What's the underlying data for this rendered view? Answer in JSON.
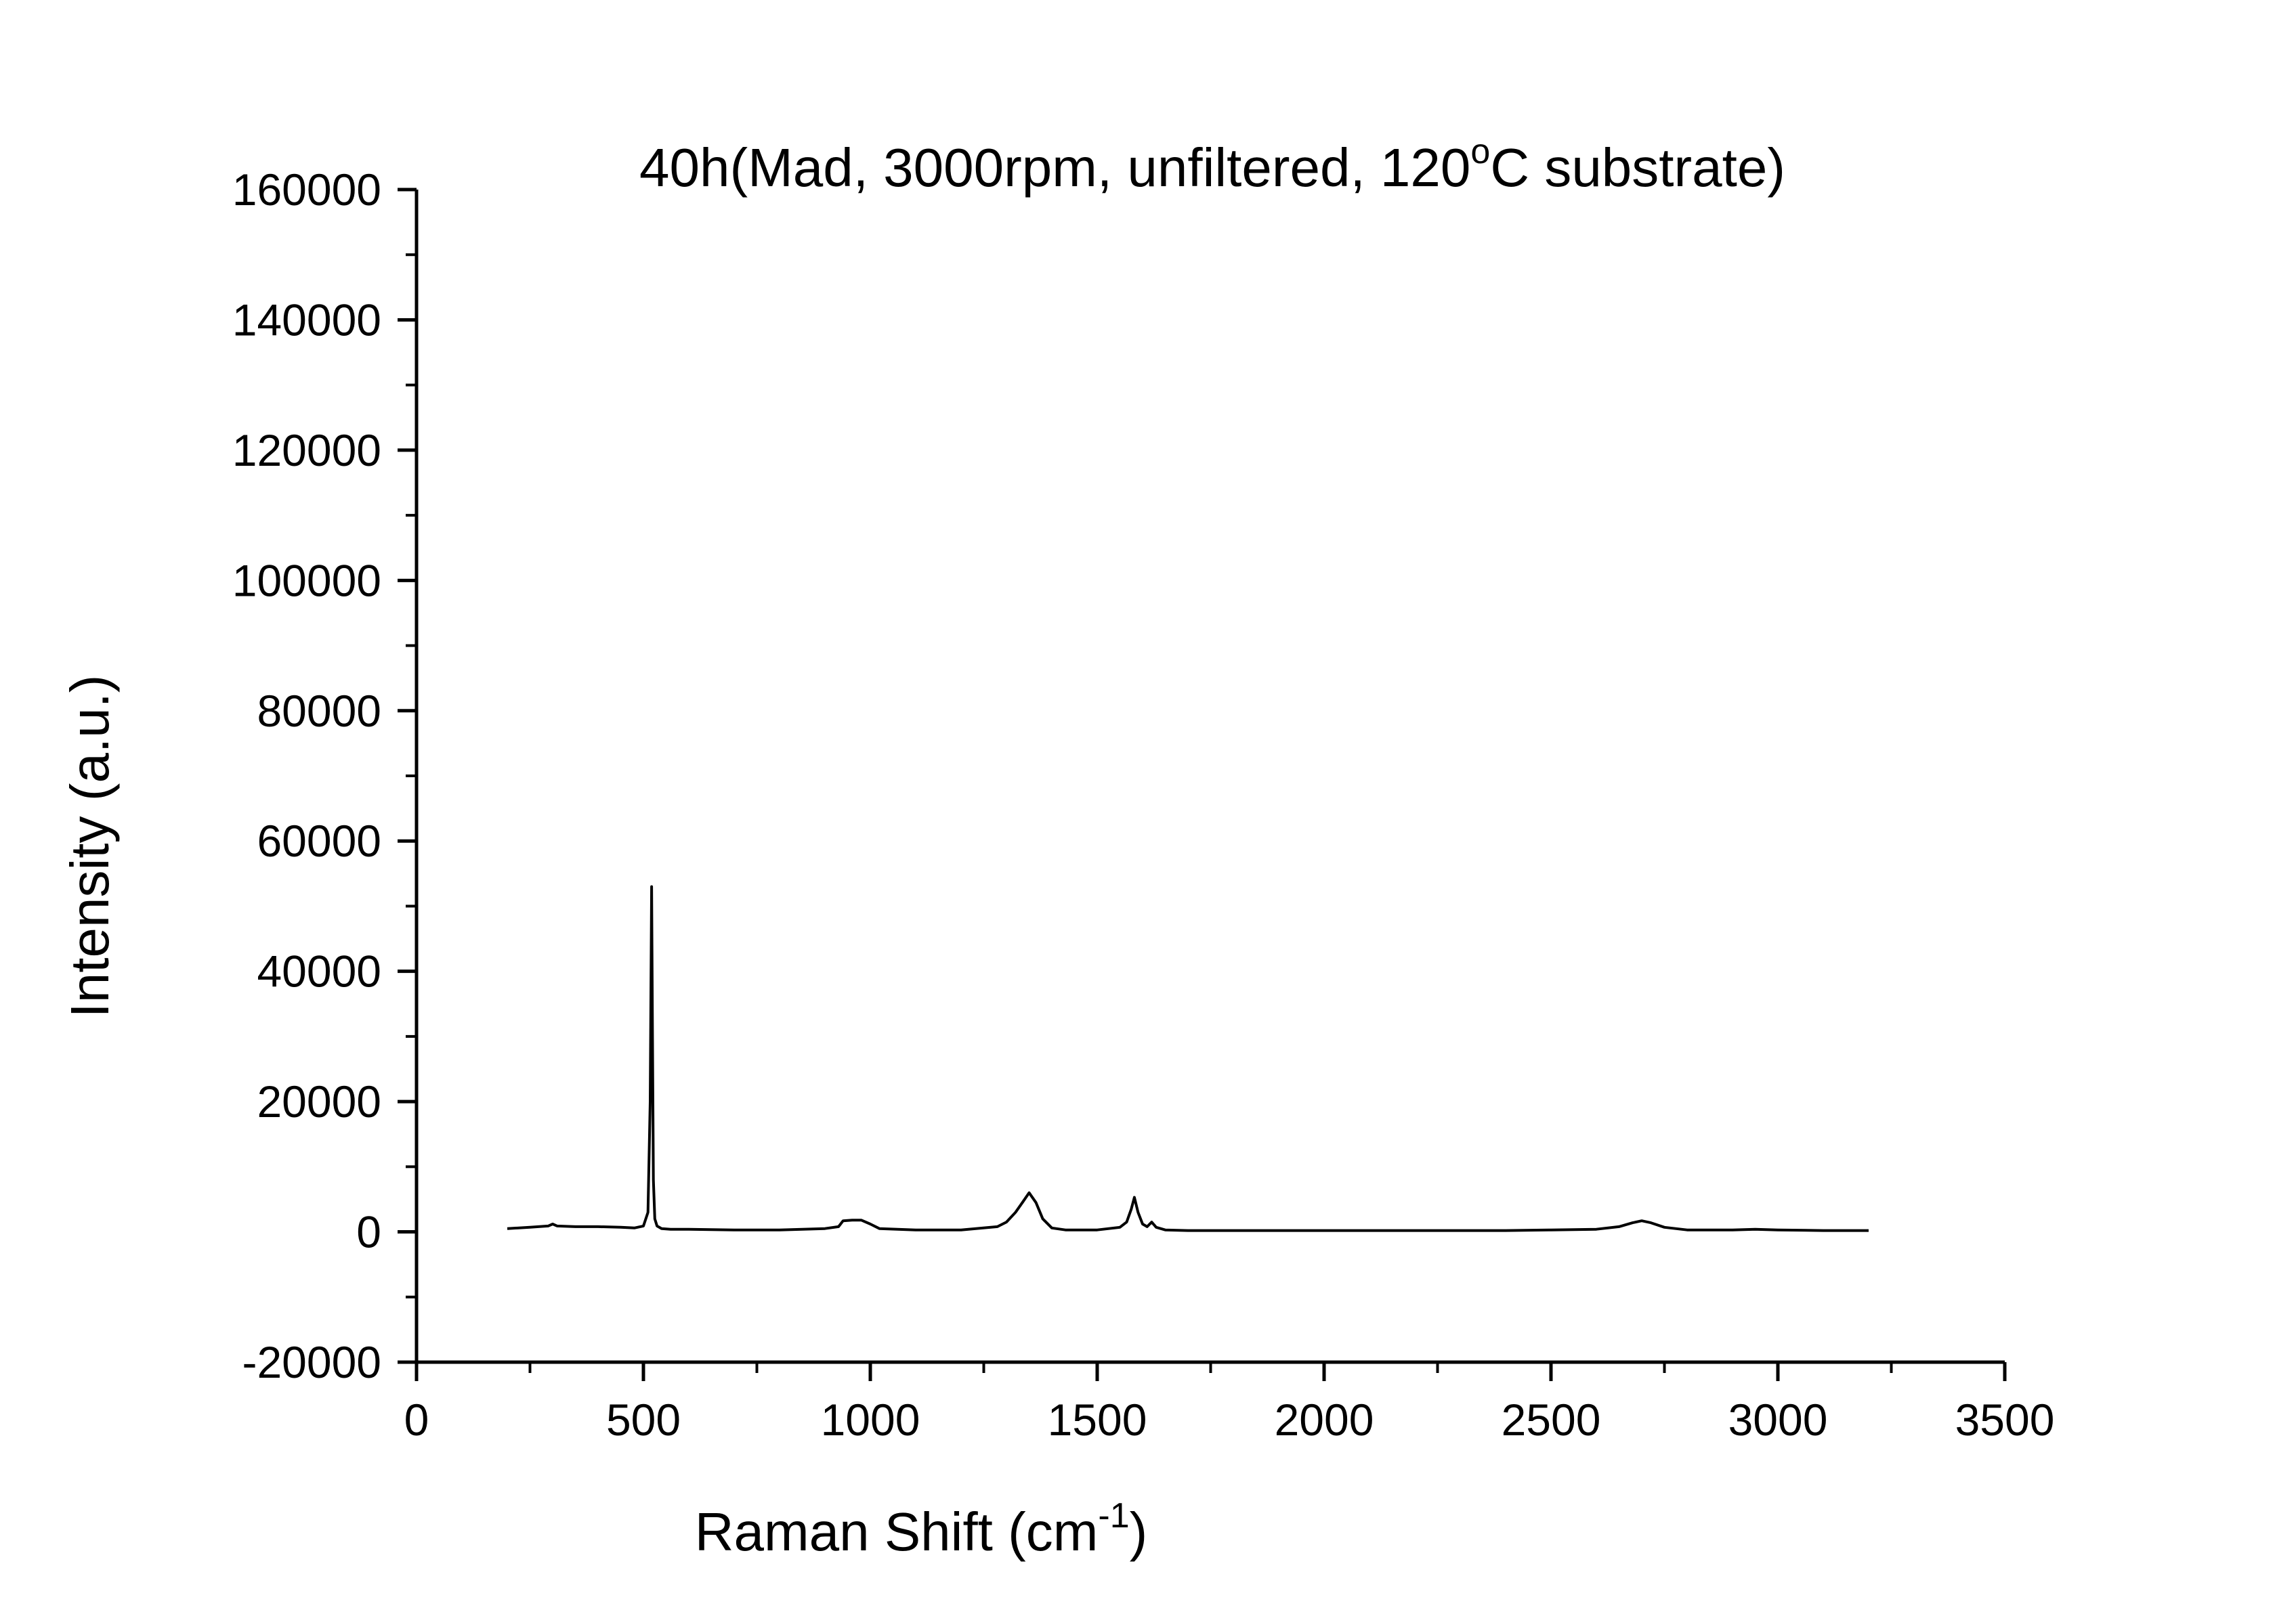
{
  "chart_data": {
    "type": "line",
    "title": {
      "prefix": "40h(Mad, 3000rpm, unfiltered, 120",
      "superscript": "o",
      "suffix": "C substrate)"
    },
    "xlabel": {
      "prefix": "Raman Shift (cm",
      "superscript": "-1",
      "suffix": ")"
    },
    "ylabel": "Intensity (a.u.)",
    "xlim": [
      0,
      3500
    ],
    "ylim": [
      -20000,
      160000
    ],
    "x_ticks": [
      0,
      500,
      1000,
      1500,
      2000,
      2500,
      3000,
      3500
    ],
    "y_ticks": [
      -20000,
      0,
      20000,
      40000,
      60000,
      80000,
      100000,
      120000,
      140000,
      160000
    ],
    "x_tick_labels": [
      "0",
      "500",
      "1000",
      "1500",
      "2000",
      "2500",
      "3000",
      "3500"
    ],
    "y_tick_labels": [
      "-20000",
      "0",
      "20000",
      "40000",
      "60000",
      "80000",
      "100000",
      "120000",
      "140000",
      "160000"
    ],
    "grid": false,
    "line_color": "#000000",
    "series": [
      {
        "x": [
          200,
          250,
          290,
          300,
          310,
          350,
          400,
          450,
          480,
          500,
          510,
          515,
          518,
          520,
          522,
          525,
          530,
          540,
          560,
          600,
          700,
          800,
          900,
          930,
          940,
          960,
          980,
          1000,
          1020,
          1100,
          1200,
          1280,
          1300,
          1320,
          1335,
          1350,
          1365,
          1380,
          1400,
          1430,
          1500,
          1550,
          1565,
          1575,
          1582,
          1590,
          1600,
          1610,
          1620,
          1630,
          1650,
          1700,
          1800,
          2000,
          2200,
          2400,
          2500,
          2600,
          2650,
          2680,
          2700,
          2720,
          2750,
          2800,
          2900,
          2950,
          3000,
          3100,
          3200
        ],
        "y": [
          500,
          700,
          900,
          1200,
          900,
          800,
          800,
          700,
          600,
          900,
          3000,
          20000,
          53000,
          30000,
          8000,
          2000,
          900,
          500,
          400,
          400,
          300,
          300,
          500,
          800,
          1700,
          1800,
          1800,
          1200,
          500,
          300,
          300,
          800,
          1500,
          3000,
          4500,
          6000,
          4500,
          2000,
          600,
          300,
          300,
          700,
          1500,
          3500,
          5300,
          3000,
          1200,
          800,
          1500,
          700,
          300,
          200,
          200,
          200,
          200,
          200,
          300,
          400,
          800,
          1400,
          1700,
          1400,
          700,
          300,
          300,
          400,
          300,
          200,
          200
        ]
      }
    ]
  }
}
